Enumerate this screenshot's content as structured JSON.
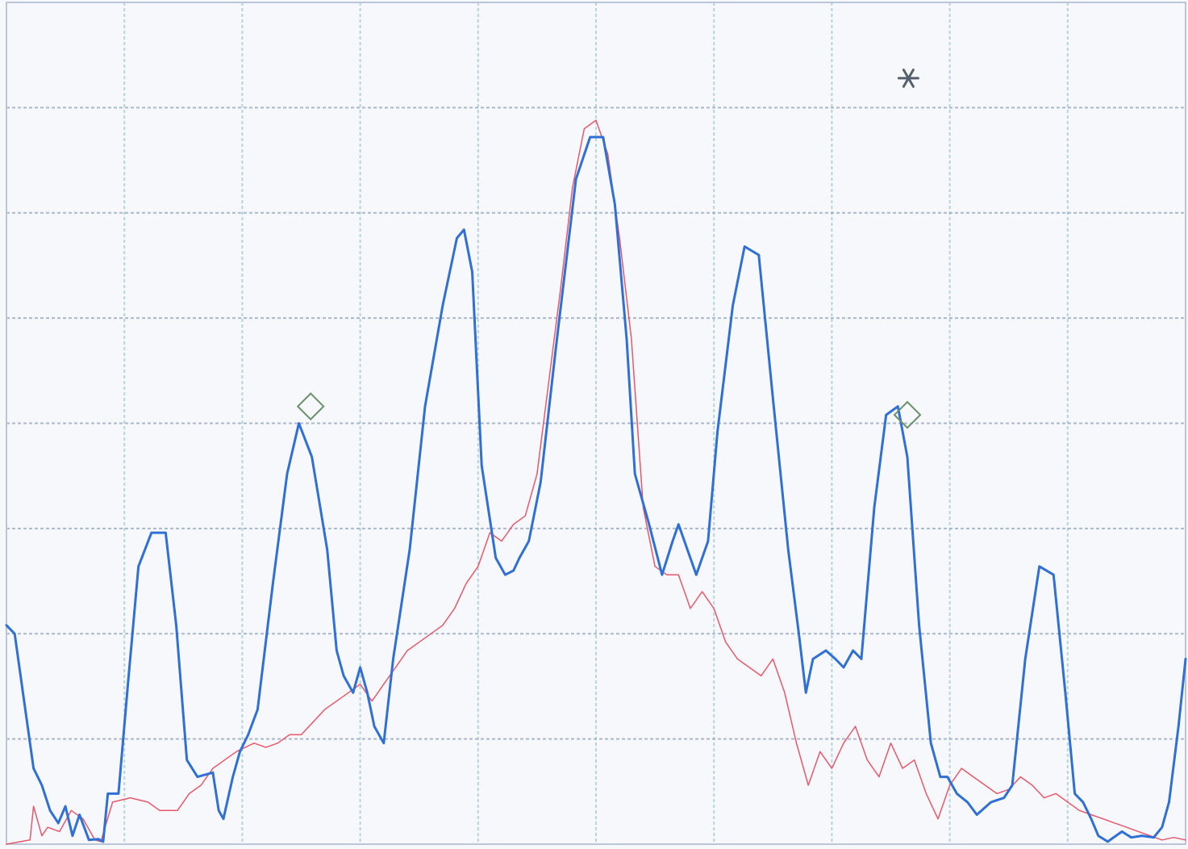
{
  "chart_data": {
    "type": "line",
    "title": "",
    "xlabel": "",
    "ylabel": "",
    "xlim": [
      0,
      100
    ],
    "ylim": [
      0,
      100
    ],
    "grid": true,
    "legend": "none",
    "x_grid_lines": [
      0,
      10,
      20,
      30,
      40,
      50,
      60,
      70,
      80,
      90,
      100
    ],
    "y_grid_lines": [
      0,
      12.5,
      25,
      37.5,
      50,
      62.5,
      75,
      87.5,
      100
    ],
    "series": [
      {
        "color": "#2f6fd6",
        "stroke_width": 3,
        "points": [
          [
            0,
            26
          ],
          [
            0.7,
            25
          ],
          [
            1.5,
            17
          ],
          [
            2.3,
            9
          ],
          [
            3,
            7
          ],
          [
            3.7,
            4
          ],
          [
            4.4,
            2.5
          ],
          [
            5,
            4.5
          ],
          [
            5.6,
            1
          ],
          [
            6.2,
            3.5
          ],
          [
            7,
            0.5
          ],
          [
            7.8,
            0.6
          ],
          [
            8.2,
            0.3
          ],
          [
            8.6,
            6
          ],
          [
            9.5,
            6
          ],
          [
            10.3,
            19
          ],
          [
            11.2,
            33
          ],
          [
            12.3,
            37
          ],
          [
            13.5,
            37
          ],
          [
            14.4,
            26
          ],
          [
            15.3,
            10
          ],
          [
            16.2,
            8
          ],
          [
            17.5,
            8.5
          ],
          [
            18,
            4
          ],
          [
            18.4,
            3
          ],
          [
            19.2,
            8
          ],
          [
            19.8,
            11
          ],
          [
            20.5,
            13
          ],
          [
            21.3,
            16
          ],
          [
            22.6,
            31
          ],
          [
            23.8,
            44
          ],
          [
            24.8,
            50
          ],
          [
            25.9,
            46
          ],
          [
            27.2,
            35
          ],
          [
            28,
            23
          ],
          [
            28.6,
            20
          ],
          [
            29.4,
            18
          ],
          [
            30,
            21
          ],
          [
            30.6,
            18
          ],
          [
            31.2,
            14
          ],
          [
            32,
            12
          ],
          [
            32.8,
            22
          ],
          [
            34.2,
            35
          ],
          [
            35.5,
            52
          ],
          [
            37,
            64
          ],
          [
            38.2,
            72
          ],
          [
            38.8,
            73
          ],
          [
            39.5,
            68
          ],
          [
            40.3,
            45
          ],
          [
            41.5,
            34
          ],
          [
            42.3,
            32
          ],
          [
            43,
            32.5
          ],
          [
            43.5,
            34
          ],
          [
            44.3,
            36
          ],
          [
            45.3,
            43
          ],
          [
            46.6,
            59
          ],
          [
            48.3,
            79
          ],
          [
            49.5,
            84
          ],
          [
            50.6,
            84
          ],
          [
            51.6,
            76
          ],
          [
            52.6,
            60
          ],
          [
            53.3,
            44
          ],
          [
            54.5,
            38
          ],
          [
            55.6,
            32
          ],
          [
            56.5,
            36
          ],
          [
            57,
            38
          ],
          [
            58.5,
            32
          ],
          [
            59.5,
            36
          ],
          [
            60.3,
            49
          ],
          [
            61.6,
            64
          ],
          [
            62.6,
            71
          ],
          [
            63.8,
            70
          ],
          [
            65,
            53
          ],
          [
            66.3,
            35
          ],
          [
            67.2,
            25
          ],
          [
            67.8,
            18
          ],
          [
            68.4,
            22
          ],
          [
            69.5,
            23
          ],
          [
            70.3,
            22
          ],
          [
            71,
            21
          ],
          [
            71.8,
            23
          ],
          [
            72.5,
            22
          ],
          [
            73.6,
            40
          ],
          [
            74.6,
            51
          ],
          [
            75.6,
            52
          ],
          [
            76.4,
            46
          ],
          [
            77.4,
            26
          ],
          [
            78.4,
            12
          ],
          [
            79.2,
            8
          ],
          [
            79.8,
            8
          ],
          [
            80.6,
            6
          ],
          [
            81.5,
            5
          ],
          [
            82.3,
            3.5
          ],
          [
            83.5,
            5
          ],
          [
            84.6,
            5.5
          ],
          [
            85.3,
            7
          ],
          [
            86.4,
            22
          ],
          [
            87.6,
            33
          ],
          [
            88.8,
            32
          ],
          [
            89.8,
            18
          ],
          [
            90.6,
            6
          ],
          [
            91.3,
            5
          ],
          [
            92,
            3
          ],
          [
            92.6,
            1
          ],
          [
            93.4,
            0.3
          ],
          [
            94.6,
            1.5
          ],
          [
            95.4,
            0.8
          ],
          [
            96.3,
            1
          ],
          [
            97.3,
            0.8
          ],
          [
            98,
            2
          ],
          [
            98.6,
            5
          ],
          [
            99.4,
            14
          ],
          [
            100,
            22
          ]
        ]
      },
      {
        "color": "#e8586b",
        "stroke_width": 1.5,
        "points": [
          [
            0,
            0
          ],
          [
            2,
            0.5
          ],
          [
            2.3,
            4.5
          ],
          [
            3,
            1
          ],
          [
            3.5,
            2
          ],
          [
            4.5,
            1.5
          ],
          [
            5.5,
            4
          ],
          [
            6.5,
            3
          ],
          [
            7.5,
            0.5
          ],
          [
            8,
            0.3
          ],
          [
            9,
            5
          ],
          [
            10.5,
            5.5
          ],
          [
            12,
            5
          ],
          [
            13,
            4
          ],
          [
            14.5,
            4
          ],
          [
            15.5,
            6
          ],
          [
            16.5,
            7
          ],
          [
            17.5,
            9
          ],
          [
            18.5,
            10
          ],
          [
            19.5,
            11
          ],
          [
            21,
            12
          ],
          [
            22,
            11.5
          ],
          [
            23,
            12
          ],
          [
            24,
            13
          ],
          [
            25,
            13
          ],
          [
            26,
            14.5
          ],
          [
            27,
            16
          ],
          [
            28,
            17
          ],
          [
            29,
            18
          ],
          [
            30,
            19
          ],
          [
            31,
            17
          ],
          [
            32,
            19
          ],
          [
            33,
            21
          ],
          [
            34,
            23
          ],
          [
            35,
            24
          ],
          [
            36,
            25
          ],
          [
            37,
            26
          ],
          [
            38,
            28
          ],
          [
            39,
            31
          ],
          [
            40,
            33
          ],
          [
            41,
            37
          ],
          [
            42,
            36
          ],
          [
            43,
            38
          ],
          [
            44,
            39
          ],
          [
            45,
            44
          ],
          [
            46,
            55
          ],
          [
            47,
            66
          ],
          [
            48,
            78
          ],
          [
            49,
            85
          ],
          [
            50,
            86
          ],
          [
            51,
            82
          ],
          [
            52,
            72
          ],
          [
            53,
            60
          ],
          [
            54,
            40
          ],
          [
            55,
            33
          ],
          [
            56,
            32
          ],
          [
            57,
            32
          ],
          [
            58,
            28
          ],
          [
            59,
            30
          ],
          [
            60,
            28
          ],
          [
            61,
            24
          ],
          [
            62,
            22
          ],
          [
            63,
            21
          ],
          [
            64,
            20
          ],
          [
            65,
            22
          ],
          [
            66,
            18
          ],
          [
            67,
            12
          ],
          [
            68,
            7
          ],
          [
            69,
            11
          ],
          [
            70,
            9
          ],
          [
            71,
            12
          ],
          [
            72,
            14
          ],
          [
            73,
            10
          ],
          [
            74,
            8
          ],
          [
            75,
            12
          ],
          [
            76,
            9
          ],
          [
            77,
            10
          ],
          [
            78,
            6
          ],
          [
            79,
            3
          ],
          [
            80,
            7
          ],
          [
            81,
            9
          ],
          [
            82,
            8
          ],
          [
            83,
            7
          ],
          [
            84,
            6
          ],
          [
            85,
            6.5
          ],
          [
            86,
            8
          ],
          [
            87,
            7
          ],
          [
            88,
            5.5
          ],
          [
            89,
            6
          ],
          [
            90,
            5
          ],
          [
            91,
            4
          ],
          [
            92,
            3.5
          ],
          [
            93,
            3
          ],
          [
            94,
            2.5
          ],
          [
            95,
            2
          ],
          [
            96,
            1.5
          ],
          [
            97,
            1
          ],
          [
            98,
            0.5
          ],
          [
            99,
            0.8
          ],
          [
            100,
            0.5
          ]
        ]
      }
    ],
    "annotations": [
      {
        "shape": "diamond",
        "x": 25.8,
        "y": 52
      },
      {
        "shape": "diamond",
        "x": 76.4,
        "y": 51
      },
      {
        "shape": "star",
        "x": 76.5,
        "y": 91
      }
    ]
  }
}
